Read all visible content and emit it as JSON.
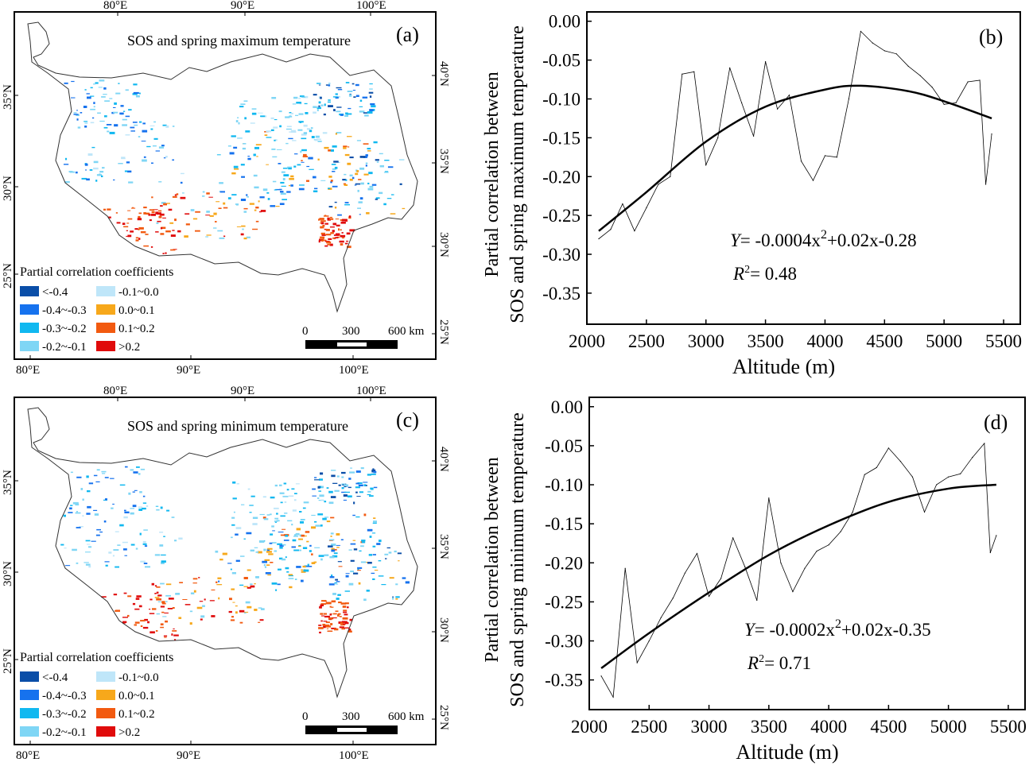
{
  "legend_colors": [
    "#0a4ea8",
    "#1672ee",
    "#11b8f0",
    "#7fd6f5",
    "#bfe6f9",
    "#f7a81b",
    "#f25a10",
    "#e00b0b"
  ],
  "maps": [
    {
      "panel": "(a)",
      "title": "SOS and spring maximum temperature",
      "top_lon": [
        "80°E",
        "90°E",
        "100°E"
      ],
      "bottom_lon": [
        "80°E",
        "90°E",
        "100°E"
      ],
      "left_lat": [
        "35°N",
        "30°N",
        "25°N"
      ],
      "right_lat": [
        "40°N",
        "35°N",
        "30°N",
        "25°N"
      ],
      "legend_title": "Partial correlation coefficients",
      "legend": [
        "<-0.4",
        "-0.4~-0.3",
        "-0.3~-0.2",
        "-0.2~-0.1",
        "-0.1~0.0",
        "0.0~0.1",
        "0.1~0.2",
        ">0.2"
      ],
      "scale": [
        "0",
        "300",
        "600 km"
      ]
    },
    {
      "panel": "(c)",
      "title": "SOS and spring minimum temperature",
      "top_lon": [
        "80°E",
        "90°E",
        "100°E"
      ],
      "bottom_lon": [
        "80°E",
        "90°E",
        "100°E"
      ],
      "left_lat": [
        "35°N",
        "30°N",
        "25°N"
      ],
      "right_lat": [
        "40°N",
        "35°N",
        "30°N",
        "25°N"
      ],
      "legend_title": "Partial correlation coefficients",
      "legend": [
        "<-0.4",
        "-0.4~-0.3",
        "-0.3~-0.2",
        "-0.2~-0.1",
        "-0.1~0.0",
        "0.0~0.1",
        "0.1~0.2",
        ">0.2"
      ],
      "scale": [
        "0",
        "300",
        "600 km"
      ]
    }
  ],
  "chart_data": [
    {
      "type": "line",
      "panel": "(b)",
      "xlabel": "Altitude (m)",
      "ylabel": [
        "Partial correlation between",
        "SOS and spring maximum temperature"
      ],
      "xticks": [
        "2000",
        "2500",
        "3000",
        "3500",
        "4000",
        "4500",
        "5000",
        "5500"
      ],
      "yticks": [
        "0.00",
        "-0.05",
        "-0.10",
        "-0.15",
        "-0.20",
        "-0.25",
        "-0.30",
        "-0.35"
      ],
      "xlim": [
        2000,
        5640
      ],
      "ylim": [
        -0.39,
        0.012
      ],
      "equation": "Y = -0.0004x²+0.02x-0.28",
      "equation_parts": {
        "y": "Y",
        "rhs": "= -0.0004x",
        "sup": "2",
        "rest": "+0.02x-0.28"
      },
      "r2": {
        "label": "R",
        "sup": "2",
        "value": "= 0.48"
      },
      "series": [
        {
          "x": [
            2100,
            2200,
            2300,
            2400,
            2500,
            2600,
            2700,
            2800,
            2900,
            3000,
            3100,
            3200,
            3300,
            3400,
            3500,
            3600,
            3700,
            3800,
            3900,
            4000,
            4100,
            4200,
            4300,
            4400,
            4500,
            4600,
            4700,
            4800,
            4900,
            5000,
            5100,
            5200,
            5300,
            5350,
            5400
          ],
          "y": [
            -0.28,
            -0.268,
            -0.235,
            -0.27,
            -0.24,
            -0.21,
            -0.2,
            -0.068,
            -0.065,
            -0.185,
            -0.15,
            -0.06,
            -0.105,
            -0.148,
            -0.052,
            -0.113,
            -0.095,
            -0.18,
            -0.205,
            -0.173,
            -0.175,
            -0.1,
            -0.013,
            -0.028,
            -0.038,
            -0.042,
            -0.058,
            -0.07,
            -0.085,
            -0.107,
            -0.105,
            -0.078,
            -0.076,
            -0.21,
            -0.145
          ]
        },
        {
          "x": [
            2100,
            2500,
            3000,
            3500,
            4000,
            4300,
            4700,
            5000,
            5400
          ],
          "y": [
            -0.27,
            -0.22,
            -0.155,
            -0.11,
            -0.088,
            -0.083,
            -0.09,
            -0.103,
            -0.125
          ]
        }
      ]
    },
    {
      "type": "line",
      "panel": "(d)",
      "xlabel": "Altitude (m)",
      "ylabel": [
        "Partial correlation between",
        "SOS and spring minimum temperature"
      ],
      "xticks": [
        "2000",
        "2500",
        "3000",
        "3500",
        "4000",
        "4500",
        "5000",
        "5500"
      ],
      "yticks": [
        "0.00",
        "-0.05",
        "-0.10",
        "-0.15",
        "-0.20",
        "-0.25",
        "-0.30",
        "-0.35"
      ],
      "xlim": [
        2000,
        5640
      ],
      "ylim": [
        -0.388,
        0.012
      ],
      "equation": "Y = -0.0002x²+0.02x-0.35",
      "equation_parts": {
        "y": "Y",
        "rhs": "= -0.0002x",
        "sup": "2",
        "rest": "+0.02x-0.35"
      },
      "r2": {
        "label": "R",
        "sup": "2",
        "value": "= 0.71"
      },
      "series": [
        {
          "x": [
            2100,
            2200,
            2300,
            2400,
            2500,
            2600,
            2700,
            2800,
            2900,
            3000,
            3100,
            3200,
            3300,
            3400,
            3500,
            3600,
            3700,
            3800,
            3900,
            4000,
            4100,
            4200,
            4300,
            4400,
            4500,
            4600,
            4700,
            4800,
            4900,
            5000,
            5100,
            5200,
            5300,
            5350,
            5400
          ],
          "y": [
            -0.345,
            -0.372,
            -0.207,
            -0.328,
            -0.3,
            -0.27,
            -0.245,
            -0.213,
            -0.188,
            -0.243,
            -0.22,
            -0.168,
            -0.205,
            -0.248,
            -0.117,
            -0.2,
            -0.237,
            -0.207,
            -0.185,
            -0.177,
            -0.16,
            -0.135,
            -0.087,
            -0.078,
            -0.053,
            -0.07,
            -0.09,
            -0.135,
            -0.1,
            -0.09,
            -0.086,
            -0.065,
            -0.047,
            -0.187,
            -0.165
          ]
        },
        {
          "x": [
            2100,
            2500,
            3000,
            3500,
            4000,
            4500,
            5000,
            5400
          ],
          "y": [
            -0.335,
            -0.29,
            -0.238,
            -0.19,
            -0.152,
            -0.122,
            -0.105,
            -0.1
          ]
        }
      ]
    }
  ]
}
